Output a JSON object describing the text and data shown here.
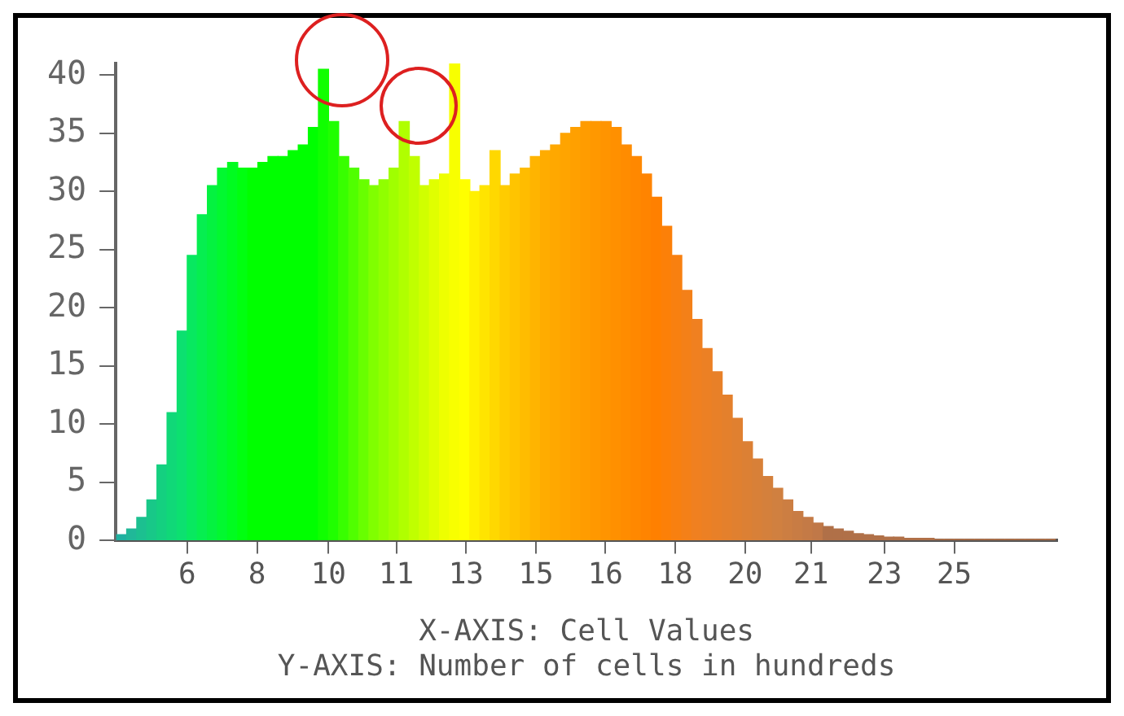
{
  "chart_data": {
    "type": "histogram",
    "xlabel": "X-AXIS: Cell Values",
    "annotations": [
      "Y-AXIS: Number of cells in hundreds"
    ],
    "bins": [
      4.25,
      4.5,
      4.75,
      5,
      5.25,
      5.5,
      5.75,
      6,
      6.25,
      6.5,
      6.75,
      7,
      7.25,
      7.5,
      7.75,
      8,
      8.25,
      8.5,
      8.75,
      9,
      9.25,
      9.5,
      9.75,
      10,
      10.25,
      10.5,
      10.75,
      11,
      11.25,
      11.5,
      11.75,
      12,
      12.25,
      12.5,
      12.75,
      13,
      13.25,
      13.5,
      13.75,
      14,
      14.25,
      14.5,
      14.75,
      15,
      15.25,
      15.5,
      15.75,
      16,
      16.25,
      16.5,
      16.75,
      17,
      17.25,
      17.5,
      17.75,
      18,
      18.25,
      18.5,
      18.75,
      19,
      19.25,
      19.5,
      19.75,
      20,
      20.25,
      20.5,
      20.75,
      21,
      21.25,
      21.5,
      21.75,
      22,
      22.25,
      22.5,
      22.75,
      23,
      23.25,
      23.5,
      23.75,
      24,
      24.25,
      24.5,
      24.75,
      25,
      25.25,
      25.5,
      25.75,
      26,
      26.25,
      26.5,
      26.75,
      27,
      27.25,
      27.5
    ],
    "values": [
      0.5,
      1,
      2,
      3.5,
      6.5,
      11,
      18,
      24.5,
      28,
      30.5,
      32,
      32.5,
      32,
      32,
      32.5,
      33,
      33,
      33.5,
      34,
      35.5,
      40.5,
      36,
      33,
      32,
      31,
      30.5,
      31,
      32,
      36,
      33,
      30.5,
      31,
      31.5,
      41,
      31,
      30,
      30.5,
      33.5,
      30.5,
      31.5,
      32,
      33,
      33.5,
      34,
      35,
      35.5,
      36,
      36,
      36,
      35.5,
      34,
      33,
      31.5,
      29.5,
      27,
      24.5,
      21.5,
      19,
      16.5,
      14.5,
      12.5,
      10.5,
      8.5,
      7,
      5.5,
      4.5,
      3.5,
      2.5,
      2,
      1.5,
      1.2,
      1,
      0.8,
      0.6,
      0.5,
      0.4,
      0.3,
      0.3,
      0.2,
      0.2,
      0.2,
      0.1,
      0.1,
      0.1,
      0.1,
      0.1,
      0.1,
      0.1,
      0.1,
      0.1,
      0.1,
      0.1,
      0.1
    ],
    "colors": [
      "#20b0a0",
      "#20b898",
      "#1cc090",
      "#18c888",
      "#14d080",
      "#10d878",
      "#0ce070",
      "#08e860",
      "#06ee50",
      "#04f240",
      "#02f830",
      "#00fc20",
      "#00ff10",
      "#00ff00",
      "#00ff00",
      "#00ff00",
      "#00ff00",
      "#00ff00",
      "#00ff00",
      "#00ff00",
      "#10ff00",
      "#20ff00",
      "#38ff00",
      "#50ff00",
      "#68ff00",
      "#80ff00",
      "#90ff00",
      "#a0ff00",
      "#b0ff00",
      "#c0ff00",
      "#d0ff00",
      "#e0ff00",
      "#eeff00",
      "#f8ff00",
      "#ffff00",
      "#fff000",
      "#ffe400",
      "#ffd800",
      "#ffcc00",
      "#ffc400",
      "#ffbc00",
      "#ffb400",
      "#ffac00",
      "#ffa800",
      "#ffa400",
      "#ffa000",
      "#ff9c00",
      "#ff9800",
      "#ff9400",
      "#ff9000",
      "#ff8c00",
      "#ff8800",
      "#ff8400",
      "#ff8000",
      "#fc8008",
      "#f88010",
      "#f48018",
      "#f08020",
      "#ec8024",
      "#e88028",
      "#e4802c",
      "#e08030",
      "#dc8034",
      "#d88038",
      "#d4803c",
      "#d08040",
      "#cc7e42",
      "#c87c44",
      "#c47a46",
      "#c07848",
      "#b07048",
      "#b07048",
      "#b07048",
      "#b07048",
      "#b07048",
      "#b07048",
      "#b07048",
      "#b07048",
      "#b07048",
      "#b07048",
      "#b07048",
      "#b07048",
      "#b07048",
      "#b07048",
      "#b07048",
      "#b07048",
      "#b07048",
      "#b07048",
      "#b07048",
      "#b07048",
      "#b07048",
      "#b07048",
      "#b07048"
    ],
    "xlim": [
      4.23,
      27.55
    ],
    "xticks": [
      6,
      {
        "value": 7.73,
        "label": "8"
      },
      {
        "value": 9.5,
        "label": "10"
      },
      {
        "value": 11.18,
        "label": "11"
      },
      {
        "value": 12.91,
        "label": "13"
      },
      {
        "value": 14.64,
        "label": "15"
      },
      {
        "value": 16.36,
        "label": "16"
      },
      {
        "value": 18.09,
        "label": "18"
      },
      {
        "value": 19.82,
        "label": "20"
      },
      {
        "value": 21.45,
        "label": "21"
      },
      {
        "value": 23.27,
        "label": "23"
      },
      25
    ],
    "ylim": [
      0,
      41
    ],
    "yticks": [
      0,
      5,
      10,
      15,
      20,
      25,
      30,
      35,
      40
    ],
    "grid": false,
    "legend": false
  }
}
